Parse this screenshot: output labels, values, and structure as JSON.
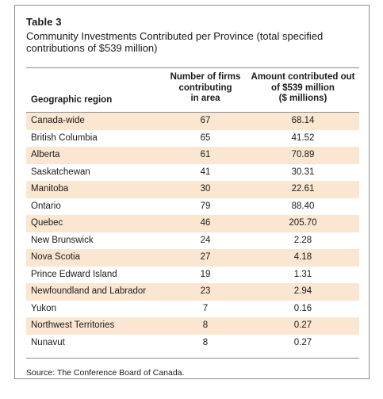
{
  "table": {
    "number": "Table 3",
    "title": "Community Investments Contributed per Province (total specified contributions of $539 million)",
    "headers": {
      "region": "Geographic region",
      "firms": [
        "Number of firms",
        "contributing",
        "in area"
      ],
      "amount": [
        "Amount contributed out",
        "of $539 million",
        "($ millions)"
      ]
    },
    "rows": [
      {
        "region": "Canada-wide",
        "firms": "67",
        "amount": "68.14"
      },
      {
        "region": "British Columbia",
        "firms": "65",
        "amount": "41.52"
      },
      {
        "region": "Alberta",
        "firms": "61",
        "amount": "70.89"
      },
      {
        "region": "Saskatchewan",
        "firms": "41",
        "amount": "30.31"
      },
      {
        "region": "Manitoba",
        "firms": "30",
        "amount": "22.61"
      },
      {
        "region": "Ontario",
        "firms": "79",
        "amount": "88.40"
      },
      {
        "region": "Quebec",
        "firms": "46",
        "amount": "205.70"
      },
      {
        "region": "New Brunswick",
        "firms": "24",
        "amount": "2.28"
      },
      {
        "region": "Nova Scotia",
        "firms": "27",
        "amount": "4.18"
      },
      {
        "region": "Prince Edward Island",
        "firms": "19",
        "amount": "1.31"
      },
      {
        "region": "Newfoundland and Labrador",
        "firms": "23",
        "amount": "2.94"
      },
      {
        "region": "Yukon",
        "firms": "7",
        "amount": "0.16"
      },
      {
        "region": "Northwest Territories",
        "firms": "8",
        "amount": "0.27"
      },
      {
        "region": "Nunavut",
        "firms": "8",
        "amount": "0.27"
      }
    ],
    "source": "Source: The Conference Board of Canada."
  },
  "colors": {
    "row_shade": "#fbe6d1",
    "rule": "#8a8a8a",
    "text": "#1a1a1a"
  }
}
